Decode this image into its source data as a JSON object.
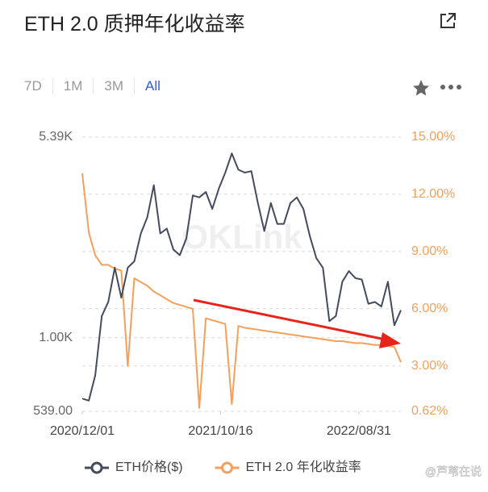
{
  "chart_data": {
    "type": "line",
    "title": "ETH 2.0 质押年化收益率",
    "range_buttons": [
      "7D",
      "1M",
      "3M",
      "All"
    ],
    "active_range": "All",
    "watermark": "OKLink",
    "x": [
      "2020/12/01",
      "2020/12/16",
      "2020/12/31",
      "2021/01/15",
      "2021/01/30",
      "2021/02/14",
      "2021/03/01",
      "2021/03/16",
      "2021/03/31",
      "2021/04/15",
      "2021/04/30",
      "2021/05/15",
      "2021/05/30",
      "2021/06/14",
      "2021/06/29",
      "2021/07/14",
      "2021/07/29",
      "2021/08/13",
      "2021/08/28",
      "2021/09/12",
      "2021/09/27",
      "2021/10/12",
      "2021/10/27",
      "2021/11/11",
      "2021/11/26",
      "2021/12/11",
      "2021/12/26",
      "2022/01/10",
      "2022/01/25",
      "2022/02/09",
      "2022/02/24",
      "2022/03/11",
      "2022/03/26",
      "2022/04/10",
      "2022/04/25",
      "2022/05/10",
      "2022/05/25",
      "2022/06/09",
      "2022/06/24",
      "2022/07/09",
      "2022/07/24",
      "2022/08/08",
      "2022/08/23",
      "2022/09/07",
      "2022/09/22",
      "2022/10/07",
      "2022/10/22",
      "2022/11/06",
      "2022/11/21",
      "2022/12/06"
    ],
    "xlim": [
      "2020/12/01",
      "2022/12/06"
    ],
    "xticks": [
      "2020/12/01",
      "2021/10/16",
      "2022/08/31"
    ],
    "yscale": "log",
    "ylim": [
      539,
      5390
    ],
    "yticks": [
      {
        "value": 539,
        "label": "539.00"
      },
      {
        "value": 1000,
        "label": "1.00K"
      },
      {
        "value": 5390,
        "label": "5.39K"
      }
    ],
    "y2lim": [
      0.62,
      15
    ],
    "y2ticks": [
      {
        "value": 0.62,
        "label": "0.62%"
      },
      {
        "value": 3,
        "label": "3.00%"
      },
      {
        "value": 6,
        "label": "6.00%"
      },
      {
        "value": 9,
        "label": "9.00%"
      },
      {
        "value": 12,
        "label": "12.00%"
      },
      {
        "value": 15,
        "label": "15.00%"
      }
    ],
    "grid": true,
    "legend": "bottom",
    "series": [
      {
        "name": "ETH价格($)",
        "color": "#454b5e",
        "values": [
          600,
          590,
          730,
          1200,
          1350,
          1800,
          1400,
          1800,
          1900,
          2400,
          2750,
          3600,
          2400,
          2500,
          2100,
          2000,
          2300,
          3300,
          3250,
          3400,
          2950,
          3500,
          4000,
          4700,
          4100,
          4000,
          4050,
          3100,
          2450,
          3100,
          2600,
          2600,
          3100,
          3250,
          2950,
          2350,
          1950,
          1800,
          1150,
          1200,
          1600,
          1750,
          1650,
          1630,
          1330,
          1350,
          1300,
          1600,
          1110,
          1260
        ]
      },
      {
        "name": "ETH 2.0 年化收益率",
        "color": "#f5a05a",
        "axis": "y2",
        "values": [
          13.1,
          10.0,
          8.8,
          8.3,
          8.3,
          8.1,
          8.0,
          3.0,
          7.6,
          7.4,
          7.2,
          6.9,
          6.7,
          6.5,
          6.3,
          6.2,
          6.1,
          6.0,
          0.8,
          5.5,
          5.4,
          5.3,
          5.2,
          1.0,
          5.1,
          5.0,
          4.95,
          4.9,
          4.85,
          4.8,
          4.75,
          4.7,
          4.65,
          4.6,
          4.55,
          4.5,
          4.45,
          4.4,
          4.35,
          4.3,
          4.3,
          4.25,
          4.2,
          4.2,
          4.15,
          4.1,
          4.1,
          4.05,
          4.0,
          3.2
        ]
      }
    ]
  },
  "author_watermark": "@芦苇在说"
}
